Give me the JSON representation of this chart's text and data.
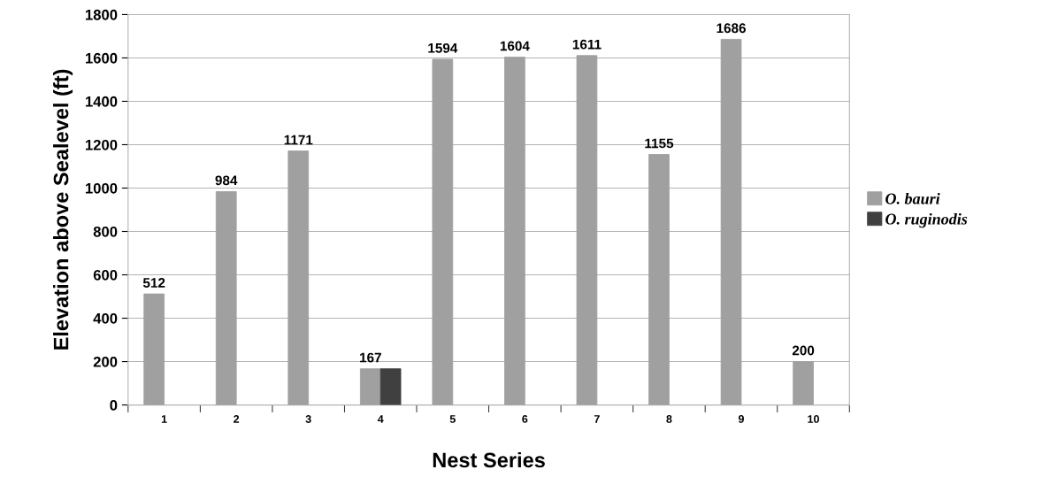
{
  "chart_data": {
    "type": "bar",
    "xlabel": "Nest Series",
    "ylabel": "Elevation above Sealevel (ft)",
    "categories": [
      "1",
      "2",
      "3",
      "4",
      "5",
      "6",
      "7",
      "8",
      "9",
      "10"
    ],
    "series": [
      {
        "name": "O. bauri",
        "color": "#a0a0a0",
        "values": [
          512,
          984,
          1171,
          167,
          1594,
          1604,
          1611,
          1155,
          1686,
          200
        ],
        "value_labels": [
          "512",
          "984",
          "1171",
          "167",
          "1594",
          "1604",
          "1611",
          "1155",
          "1686",
          "200"
        ]
      },
      {
        "name": "O. ruginodis",
        "color": "#404040",
        "values": [
          null,
          null,
          null,
          167,
          null,
          null,
          null,
          null,
          null,
          null
        ]
      }
    ],
    "ylim": [
      0,
      1800
    ],
    "yticks": [
      0,
      200,
      400,
      600,
      800,
      1000,
      1200,
      1400,
      1600,
      1800
    ],
    "grid": "y",
    "legend": "right"
  }
}
